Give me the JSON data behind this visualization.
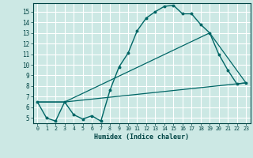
{
  "xlabel": "Humidex (Indice chaleur)",
  "ylabel": "",
  "background_color": "#cce8e4",
  "grid_color": "#ffffff",
  "line_color": "#006666",
  "xlim": [
    -0.5,
    23.5
  ],
  "ylim": [
    4.5,
    15.8
  ],
  "xticks": [
    0,
    1,
    2,
    3,
    4,
    5,
    6,
    7,
    8,
    9,
    10,
    11,
    12,
    13,
    14,
    15,
    16,
    17,
    18,
    19,
    20,
    21,
    22,
    23
  ],
  "yticks": [
    5,
    6,
    7,
    8,
    9,
    10,
    11,
    12,
    13,
    14,
    15
  ],
  "curve1_x": [
    0,
    1,
    2,
    3,
    4,
    5,
    6,
    7,
    8,
    9,
    10,
    11,
    12,
    13,
    14,
    15,
    16,
    17,
    18,
    19,
    20,
    21,
    22,
    23
  ],
  "curve1_y": [
    6.5,
    5.0,
    4.7,
    6.5,
    5.3,
    4.9,
    5.2,
    4.7,
    7.6,
    9.8,
    11.1,
    13.2,
    14.4,
    15.0,
    15.5,
    15.6,
    14.8,
    14.8,
    13.8,
    13.0,
    11.0,
    9.5,
    8.2,
    8.3
  ],
  "curve2_x": [
    0,
    3,
    23
  ],
  "curve2_y": [
    6.5,
    6.5,
    8.3
  ],
  "curve3_x": [
    0,
    3,
    19,
    23
  ],
  "curve3_y": [
    6.5,
    6.5,
    13.0,
    8.3
  ]
}
